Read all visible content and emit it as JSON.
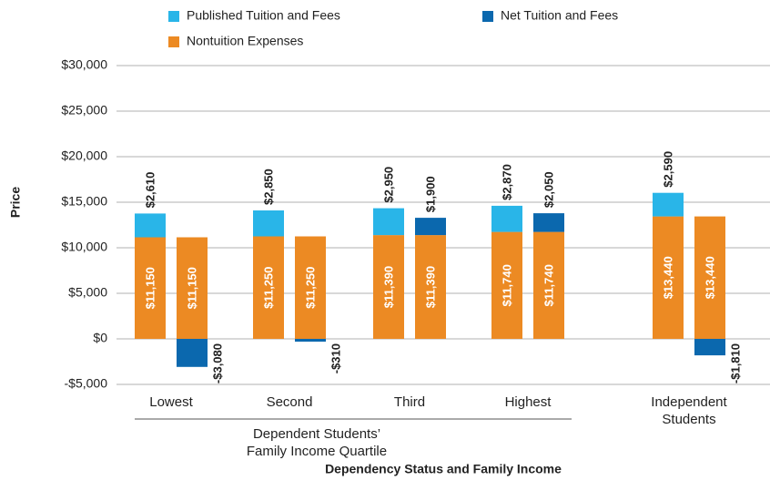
{
  "chart_data": {
    "type": "bar",
    "legend": "top",
    "y_label": "Price",
    "x_label": "Dependency Status and Family Income",
    "group_label": "Dependent Students’ Family Income Quartile",
    "categories": [
      "Lowest",
      "Second",
      "Third",
      "Highest",
      "Independent Students"
    ],
    "series": [
      {
        "name": "Published Tuition and Fees",
        "color": "#29b5e8",
        "values": [
          2610,
          2850,
          2950,
          2870,
          2590
        ],
        "value_labels": [
          "$2,610",
          "$2,850",
          "$2,950",
          "$2,870",
          "$2,590"
        ]
      },
      {
        "name": "Net Tuition and Fees",
        "color": "#0b68ae",
        "values": [
          -3080,
          -310,
          1900,
          2050,
          -1810
        ],
        "value_labels": [
          "-$3,080",
          "-$310",
          "$1,900",
          "$2,050",
          "-$1,810"
        ]
      },
      {
        "name": "Nontuition Expenses",
        "color": "#ec8a23",
        "values": [
          11150,
          11250,
          11390,
          11740,
          13440
        ],
        "value_labels": [
          "$11,150",
          "$11,250",
          "$11,390",
          "$11,740",
          "$13,440"
        ]
      }
    ],
    "ylim": [
      -5000,
      30000
    ],
    "yticks": [
      {
        "value": -5000,
        "label": "-$5,000"
      },
      {
        "value": 0,
        "label": "$0"
      },
      {
        "value": 5000,
        "label": "$5,000"
      },
      {
        "value": 10000,
        "label": "$10,000"
      },
      {
        "value": 15000,
        "label": "$15,000"
      },
      {
        "value": 20000,
        "label": "$20,000"
      },
      {
        "value": 25000,
        "label": "$25,000"
      },
      {
        "value": 30000,
        "label": "$30,000"
      }
    ],
    "grid": true
  }
}
